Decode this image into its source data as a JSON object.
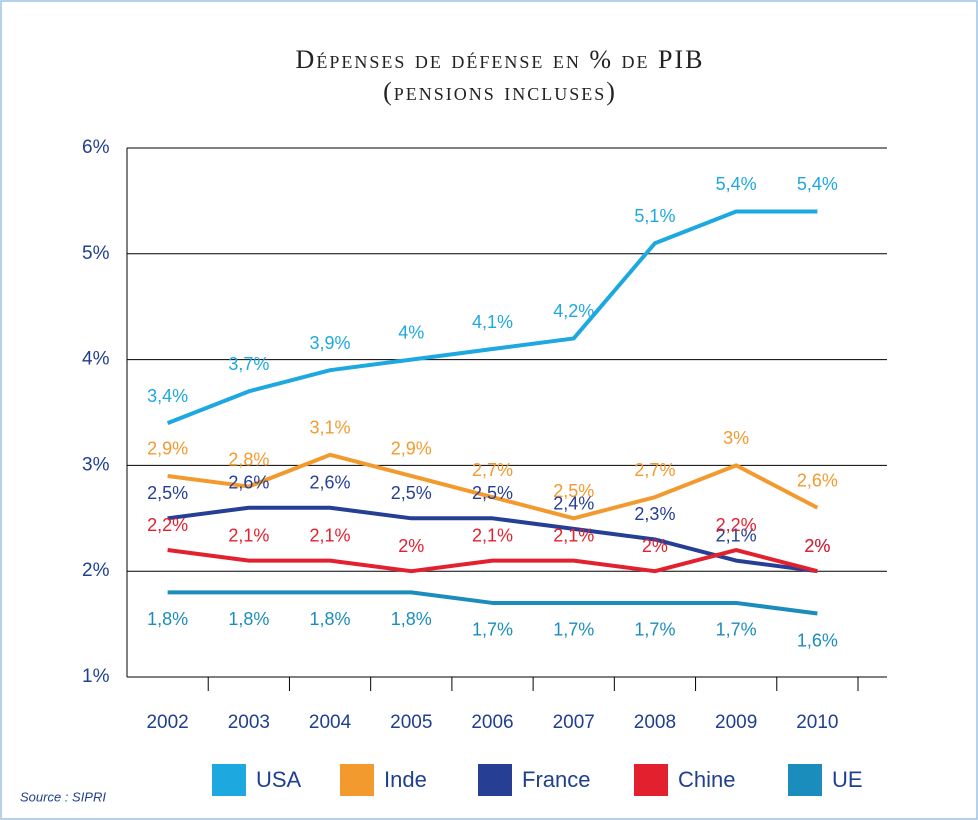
{
  "chart_data": {
    "type": "line",
    "title": "Dépenses de défense en % de PIB",
    "subtitle": "(pensions incluses)",
    "source": "Source : SIPRI",
    "categories": [
      "2002",
      "2003",
      "2004",
      "2005",
      "2006",
      "2007",
      "2008",
      "2009",
      "2010"
    ],
    "ylim": [
      1,
      6
    ],
    "yticks": [
      {
        "value": 1,
        "label": "1%"
      },
      {
        "value": 2,
        "label": "2%"
      },
      {
        "value": 3,
        "label": "3%"
      },
      {
        "value": 4,
        "label": "4%"
      },
      {
        "value": 5,
        "label": "5%"
      },
      {
        "value": 6,
        "label": "6%"
      }
    ],
    "grid": true,
    "legend": "bottom",
    "series": [
      {
        "name": "USA",
        "color": "#1ea8e0",
        "values": [
          3.4,
          3.7,
          3.9,
          4,
          4.1,
          4.2,
          5.1,
          5.4,
          5.4
        ],
        "value_labels": [
          "3,4%",
          "3,7%",
          "3,9%",
          "4%",
          "4,1%",
          "4,2%",
          "5,1%",
          "5,4%",
          "5,4%"
        ]
      },
      {
        "name": "Inde",
        "color": "#f39a2e",
        "values": [
          2.9,
          2.8,
          3.1,
          2.9,
          2.7,
          2.5,
          2.7,
          3,
          2.6
        ],
        "value_labels": [
          "2,9%",
          "2,8%",
          "3,1%",
          "2,9%",
          "2,7%",
          "2,5%",
          "2,7%",
          "3%",
          "2,6%"
        ]
      },
      {
        "name": "France",
        "color": "#263f95",
        "values": [
          2.5,
          2.6,
          2.6,
          2.5,
          2.5,
          2.4,
          2.3,
          2.1,
          2
        ],
        "value_labels": [
          "2,5%",
          "2,6%",
          "2,6%",
          "2,5%",
          "2,5%",
          "2,4%",
          "2,3%",
          "2,1%",
          "2%"
        ]
      },
      {
        "name": "Chine",
        "color": "#e3202e",
        "values": [
          2.2,
          2.1,
          2.1,
          2,
          2.1,
          2.1,
          2,
          2.2,
          2
        ],
        "value_labels": [
          "2,2%",
          "2,1%",
          "2,1%",
          "2%",
          "2,1%",
          "2,1%",
          "2%",
          "2,2%",
          "2%"
        ]
      },
      {
        "name": "UE",
        "color": "#1a8dbd",
        "values": [
          1.8,
          1.8,
          1.8,
          1.8,
          1.7,
          1.7,
          1.7,
          1.7,
          1.6
        ],
        "value_labels": [
          "1,8%",
          "1,8%",
          "1,8%",
          "1,8%",
          "1,7%",
          "1,7%",
          "1,7%",
          "1,7%",
          "1,6%"
        ]
      }
    ]
  }
}
